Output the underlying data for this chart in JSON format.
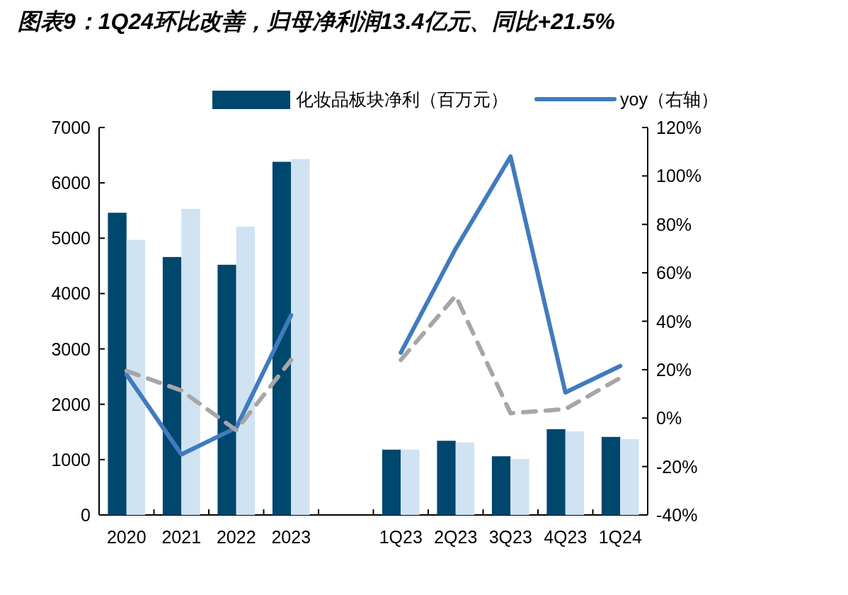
{
  "chart_data": {
    "type": "bar",
    "title": "图表9：1Q24环比改善，归母净利润13.4亿元、同比+21.5%",
    "categories": [
      "2020",
      "2021",
      "2022",
      "2023",
      null,
      "1Q23",
      "2Q23",
      "3Q23",
      "4Q23",
      "1Q24"
    ],
    "series": [
      {
        "name": "化妆品板块净利（百万元）",
        "color": "#00476e",
        "values": [
          5460,
          4660,
          4520,
          6380,
          null,
          1180,
          1340,
          1060,
          1550,
          1410
        ]
      },
      {
        "color": "#d0e3f2",
        "values": [
          4970,
          5530,
          5210,
          6430,
          null,
          1180,
          1310,
          1010,
          1510,
          1370
        ]
      },
      {
        "name": "yoy（右轴）",
        "type": "line",
        "axis": "y2",
        "color": "#417bbd",
        "line_style": "solid",
        "values": [
          18,
          -15,
          -4,
          42.5,
          null,
          27,
          70,
          108,
          10.6,
          21.5
        ]
      },
      {
        "type": "line",
        "axis": "y2",
        "color": "#a6a6a6",
        "line_style": "dashed",
        "values": [
          19.5,
          11.4,
          -5,
          24,
          null,
          24,
          50.5,
          2,
          3.7,
          16.6
        ]
      }
    ],
    "ylim": [
      0,
      7000
    ],
    "yticks": [
      0,
      1000,
      2000,
      3000,
      4000,
      5000,
      6000,
      7000
    ],
    "y2lim": [
      -40,
      120
    ],
    "y2ticks": [
      {
        "value": -40,
        "label": "-40%"
      },
      {
        "value": -20,
        "label": "-20%"
      },
      {
        "value": 0,
        "label": "0%"
      },
      {
        "value": 20,
        "label": "20%"
      },
      {
        "value": 40,
        "label": "40%"
      },
      {
        "value": 60,
        "label": "60%"
      },
      {
        "value": 80,
        "label": "80%"
      },
      {
        "value": 100,
        "label": "100%"
      },
      {
        "value": 120,
        "label": "120%"
      }
    ],
    "legend": "top"
  }
}
